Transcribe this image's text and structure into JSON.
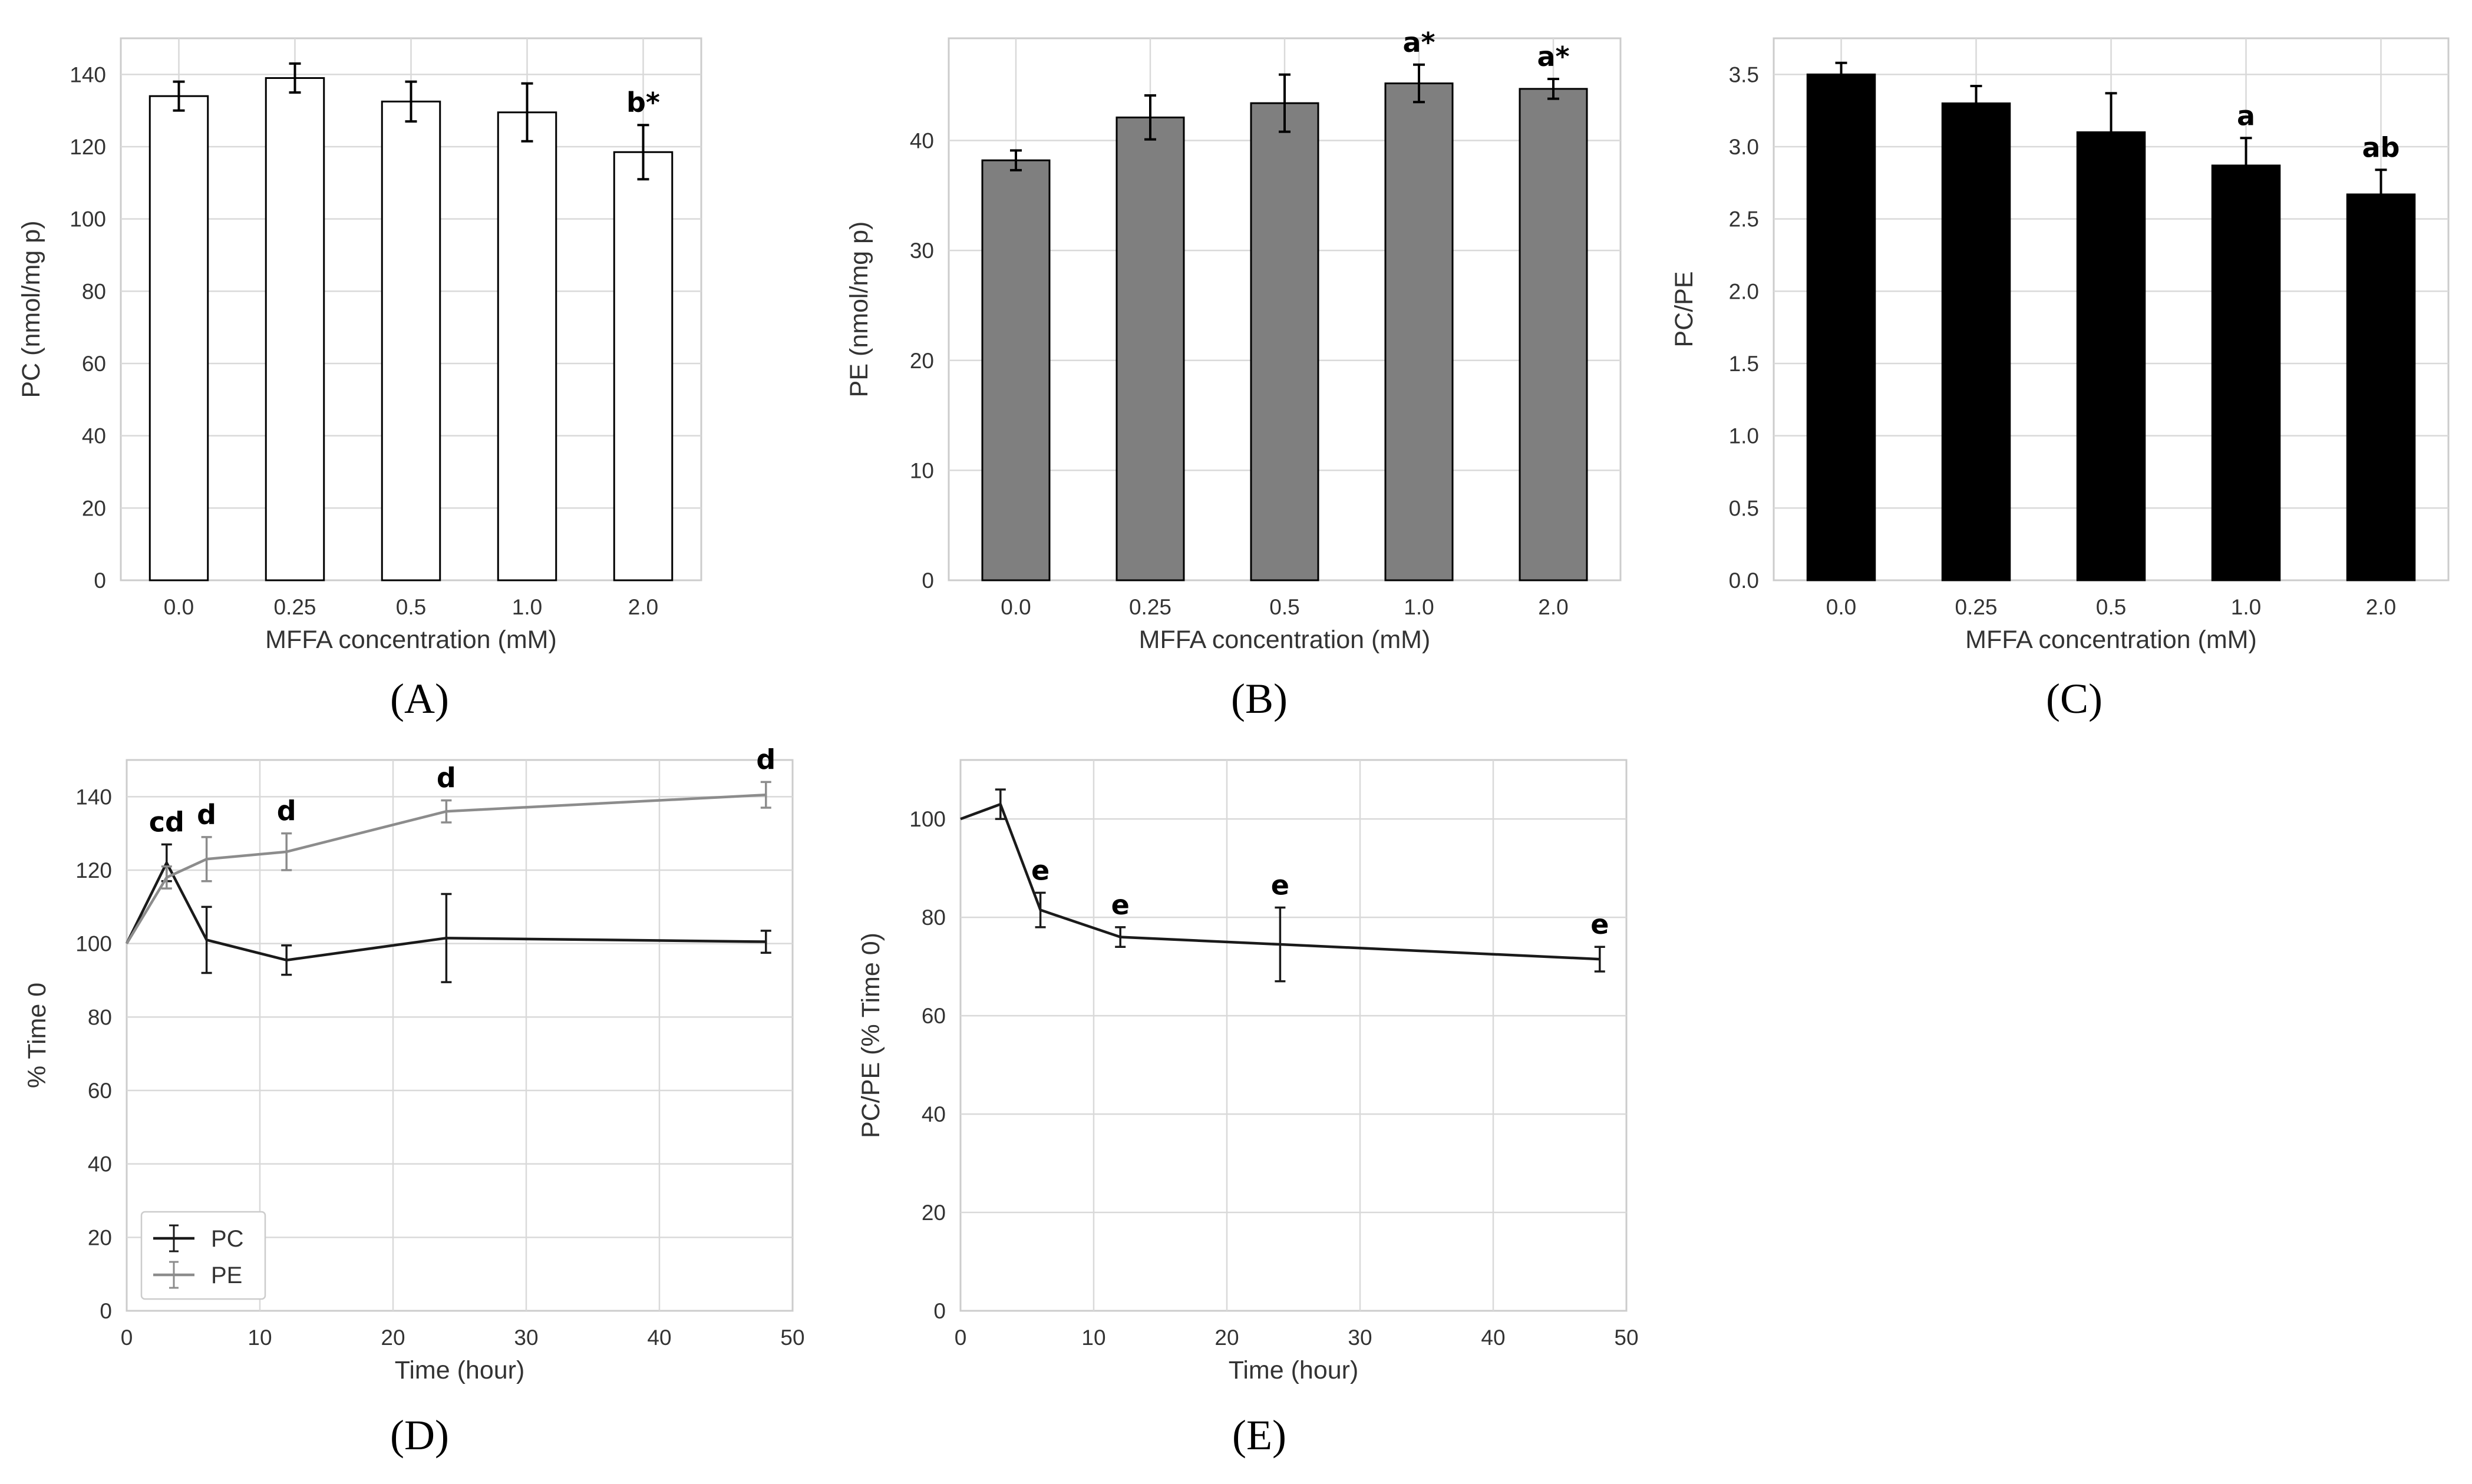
{
  "chart_data": [
    {
      "panel": "A",
      "type": "bar",
      "color": "#ffffff",
      "edge_color": "#000000",
      "xlabel": "MFFA concentration (mM)",
      "ylabel": "PC (nmol/mg p)",
      "categories": [
        "0.0",
        "0.25",
        "0.5",
        "1.0",
        "2.0"
      ],
      "values": [
        134,
        139,
        132.5,
        129.5,
        118.5
      ],
      "errors": [
        4,
        4,
        5.5,
        8,
        7.5
      ],
      "annotations": [
        "",
        "",
        "",
        "",
        "b*"
      ],
      "ylim": [
        0,
        150
      ],
      "yticks": [
        0,
        20,
        40,
        60,
        80,
        100,
        120,
        140
      ]
    },
    {
      "panel": "B",
      "type": "bar",
      "color": "#7f7f7f",
      "edge_color": "#000000",
      "xlabel": "MFFA concentration (mM)",
      "ylabel": "PE (nmol/mg p)",
      "categories": [
        "0.0",
        "0.25",
        "0.5",
        "1.0",
        "2.0"
      ],
      "values": [
        38.2,
        42.1,
        43.4,
        45.2,
        44.7
      ],
      "errors": [
        0.9,
        2.0,
        2.6,
        1.7,
        0.9
      ],
      "annotations": [
        "",
        "",
        "",
        "a*",
        "a*"
      ],
      "ylim": [
        0,
        49.3
      ],
      "yticks": [
        0,
        10,
        20,
        30,
        40
      ]
    },
    {
      "panel": "C",
      "type": "bar",
      "color": "#000000",
      "edge_color": "#000000",
      "xlabel": "MFFA concentration (mM)",
      "ylabel": "PC/PE",
      "categories": [
        "0.0",
        "0.25",
        "0.5",
        "1.0",
        "2.0"
      ],
      "values": [
        3.5,
        3.3,
        3.1,
        2.87,
        2.67
      ],
      "errors": [
        0.08,
        0.12,
        0.27,
        0.19,
        0.17
      ],
      "annotations": [
        "",
        "",
        "",
        "a",
        "ab"
      ],
      "ylim": [
        0,
        3.75
      ],
      "yticks": [
        "0.0",
        "0.5",
        "1.0",
        "1.5",
        "2.0",
        "2.5",
        "3.0",
        "3.5"
      ]
    },
    {
      "panel": "D",
      "type": "line",
      "xlabel": "Time (hour)",
      "ylabel": "% Time 0",
      "xlim": [
        0,
        50
      ],
      "ylim": [
        0,
        150
      ],
      "xticks": [
        0,
        10,
        20,
        30,
        40,
        50
      ],
      "yticks": [
        0,
        20,
        40,
        60,
        80,
        100,
        120,
        140
      ],
      "x": [
        0,
        3,
        6,
        12,
        24,
        48
      ],
      "series": [
        {
          "name": "PC",
          "color": "#1a1a1a",
          "values": [
            100,
            122,
            101,
            95.5,
            101.5,
            100.5
          ],
          "errors": [
            0,
            5,
            9,
            4,
            12,
            3
          ]
        },
        {
          "name": "PE",
          "color": "#8c8c8c",
          "values": [
            100,
            118,
            123,
            125,
            136,
            140.5
          ],
          "errors": [
            0,
            3,
            6,
            5,
            3,
            3.5
          ]
        }
      ],
      "annotations": [
        {
          "label": "cd",
          "x": 3
        },
        {
          "label": "d",
          "x": 6
        },
        {
          "label": "d",
          "x": 12
        },
        {
          "label": "d",
          "x": 24
        },
        {
          "label": "d",
          "x": 48
        }
      ],
      "legend": {
        "position": "bottom-left"
      }
    },
    {
      "panel": "E",
      "type": "line",
      "xlabel": "Time (hour)",
      "ylabel": "PC/PE (% Time 0)",
      "xlim": [
        0,
        50
      ],
      "ylim": [
        0,
        112
      ],
      "xticks": [
        0,
        10,
        20,
        30,
        40,
        50
      ],
      "yticks": [
        0,
        20,
        40,
        60,
        80,
        100
      ],
      "x": [
        0,
        3,
        6,
        12,
        24,
        48
      ],
      "series": [
        {
          "name": "PC/PE",
          "color": "#1a1a1a",
          "values": [
            100,
            103,
            81.5,
            76,
            74.5,
            71.5
          ],
          "errors": [
            0,
            3,
            3.5,
            2,
            7.5,
            2.5
          ]
        }
      ],
      "annotations": [
        {
          "label": "e",
          "x": 6
        },
        {
          "label": "e",
          "x": 12
        },
        {
          "label": "e",
          "x": 24
        },
        {
          "label": "e",
          "x": 48
        }
      ]
    }
  ],
  "panel_labels": [
    "(A)",
    "(B)",
    "(C)",
    "(D)",
    "(E)"
  ]
}
